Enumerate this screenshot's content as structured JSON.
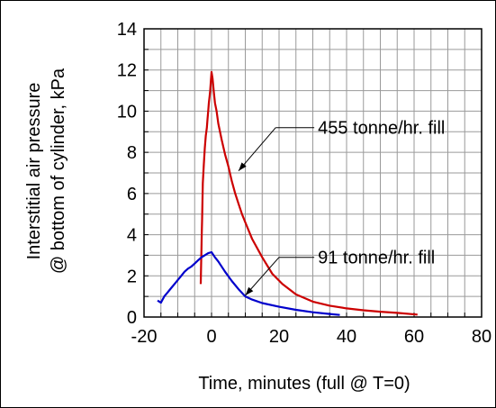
{
  "chart_data": {
    "type": "line",
    "title": "",
    "xlabel": "Time, minutes (full @ T=0)",
    "ylabel_lines": [
      "Interstitial air pressure",
      "@ bottom of cylinder, kPa"
    ],
    "xlim": [
      -20,
      80
    ],
    "ylim": [
      0,
      14
    ],
    "x_ticks": [
      "-20",
      "0",
      "20",
      "40",
      "60",
      "80"
    ],
    "y_ticks": [
      "0",
      "2",
      "4",
      "6",
      "8",
      "10",
      "12",
      "14"
    ],
    "x_minor_step": 5,
    "y_minor_step": 1,
    "grid": true,
    "series": [
      {
        "color": "#cc0000",
        "x": [
          -3.2,
          -3.1,
          -3.0,
          -2.9,
          -2.8,
          -2.7,
          -2.6,
          -2.3,
          -2.0,
          -1.7,
          -1.4,
          -1.2,
          -1.0,
          -0.8,
          -0.6,
          -0.4,
          -0.2,
          0,
          0.3,
          0.7,
          1.0,
          1.5,
          2,
          3,
          4,
          5,
          6,
          7,
          8,
          9,
          10,
          12,
          15,
          18,
          21,
          25,
          30,
          35,
          40,
          45,
          50,
          55,
          61
        ],
        "y": [
          1.6,
          2.5,
          3.3,
          4.0,
          4.7,
          5.6,
          6.5,
          7.4,
          8.2,
          8.8,
          9.2,
          9.6,
          10.0,
          10.4,
          10.7,
          11.0,
          11.5,
          11.9,
          11.6,
          10.9,
          10.4,
          10.0,
          9.4,
          8.6,
          7.9,
          7.3,
          6.6,
          6.0,
          5.5,
          5.0,
          4.6,
          3.8,
          2.9,
          2.1,
          1.6,
          1.1,
          0.75,
          0.55,
          0.42,
          0.33,
          0.26,
          0.2,
          0.12
        ]
      },
      {
        "color": "#0000cc",
        "x": [
          -16,
          -15,
          -14,
          -13,
          -12,
          -11,
          -10,
          -9,
          -8,
          -7,
          -6,
          -5,
          -4,
          -3,
          -2,
          -1,
          0,
          1,
          2,
          4,
          6,
          8,
          10,
          12,
          15,
          20,
          25,
          30,
          35,
          38
        ],
        "y": [
          0.8,
          0.7,
          1.0,
          1.2,
          1.4,
          1.6,
          1.8,
          2.0,
          2.2,
          2.35,
          2.45,
          2.6,
          2.75,
          2.9,
          3.0,
          3.1,
          3.15,
          2.9,
          2.7,
          2.2,
          1.75,
          1.35,
          1.0,
          0.85,
          0.68,
          0.5,
          0.35,
          0.23,
          0.15,
          0.1
        ]
      }
    ],
    "annotations": [
      {
        "text": "455 tonne/hr. fill",
        "x": 31.5,
        "y": 9.2,
        "arrow_from": [
          19,
          9.2
        ],
        "arrow_to": [
          8,
          7.1
        ]
      },
      {
        "text": "91 tonne/hr. fill",
        "x": 31.5,
        "y": 2.9,
        "arrow_from": [
          20,
          2.9
        ],
        "arrow_to": [
          10,
          1.05
        ]
      }
    ]
  }
}
